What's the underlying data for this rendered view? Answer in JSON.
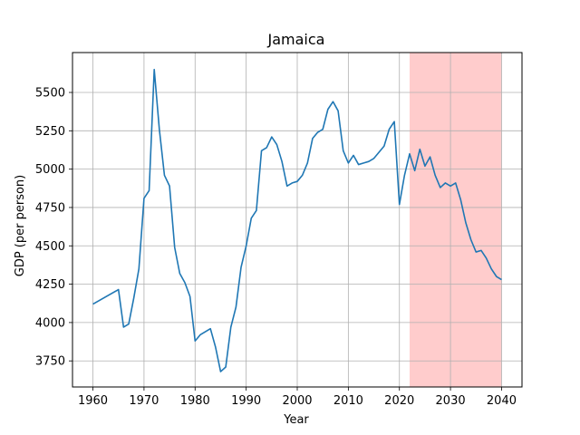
{
  "chart_data": {
    "type": "line",
    "title": "Jamaica",
    "xlabel": "Year",
    "ylabel": "GDP (per person)",
    "xlim": [
      1956,
      2044
    ],
    "ylim": [
      3580,
      5760
    ],
    "xticks": [
      1960,
      1970,
      1980,
      1990,
      2000,
      2010,
      2020,
      2030,
      2040
    ],
    "yticks": [
      3750,
      4000,
      4250,
      4500,
      4750,
      5000,
      5250,
      5500
    ],
    "grid": true,
    "line_color": "#1f77b4",
    "shaded_region": {
      "x_start": 2022,
      "x_end": 2040,
      "color": "#ffcccc"
    },
    "series": [
      {
        "x": [
          1960,
          1965,
          1966,
          1967,
          1968,
          1969,
          1970,
          1971,
          1972,
          1973,
          1974,
          1975,
          1976,
          1977,
          1978,
          1979,
          1980,
          1981,
          1982,
          1983,
          1984,
          1985,
          1986,
          1987,
          1988,
          1989,
          1990,
          1991,
          1992,
          1993,
          1994,
          1995,
          1996,
          1997,
          1998,
          1999,
          2000,
          2001,
          2002,
          2003,
          2004,
          2005,
          2006,
          2007,
          2008,
          2009,
          2010,
          2011,
          2012,
          2013,
          2014,
          2015,
          2016,
          2017,
          2018,
          2019,
          2020,
          2021,
          2022,
          2023,
          2024,
          2025,
          2026,
          2027,
          2028,
          2029,
          2030,
          2031,
          2032,
          2033,
          2034,
          2035,
          2036,
          2037,
          2038,
          2039,
          2040
        ],
        "y": [
          4120,
          4215,
          3970,
          3990,
          4160,
          4350,
          4810,
          4860,
          5650,
          5260,
          4960,
          4890,
          4490,
          4320,
          4260,
          4170,
          3880,
          3920,
          3940,
          3960,
          3840,
          3680,
          3710,
          3970,
          4100,
          4360,
          4500,
          4680,
          4730,
          5120,
          5140,
          5210,
          5160,
          5050,
          4890,
          4910,
          4920,
          4960,
          5040,
          5200,
          5240,
          5260,
          5390,
          5440,
          5380,
          5120,
          5040,
          5090,
          5030,
          5040,
          5050,
          5070,
          5110,
          5150,
          5260,
          5310,
          4770,
          4960,
          5100,
          4990,
          5130,
          5020,
          5080,
          4960,
          4880,
          4910,
          4890,
          4910,
          4800,
          4650,
          4540,
          4460,
          4470,
          4420,
          4350,
          4300,
          4280
        ]
      }
    ]
  }
}
